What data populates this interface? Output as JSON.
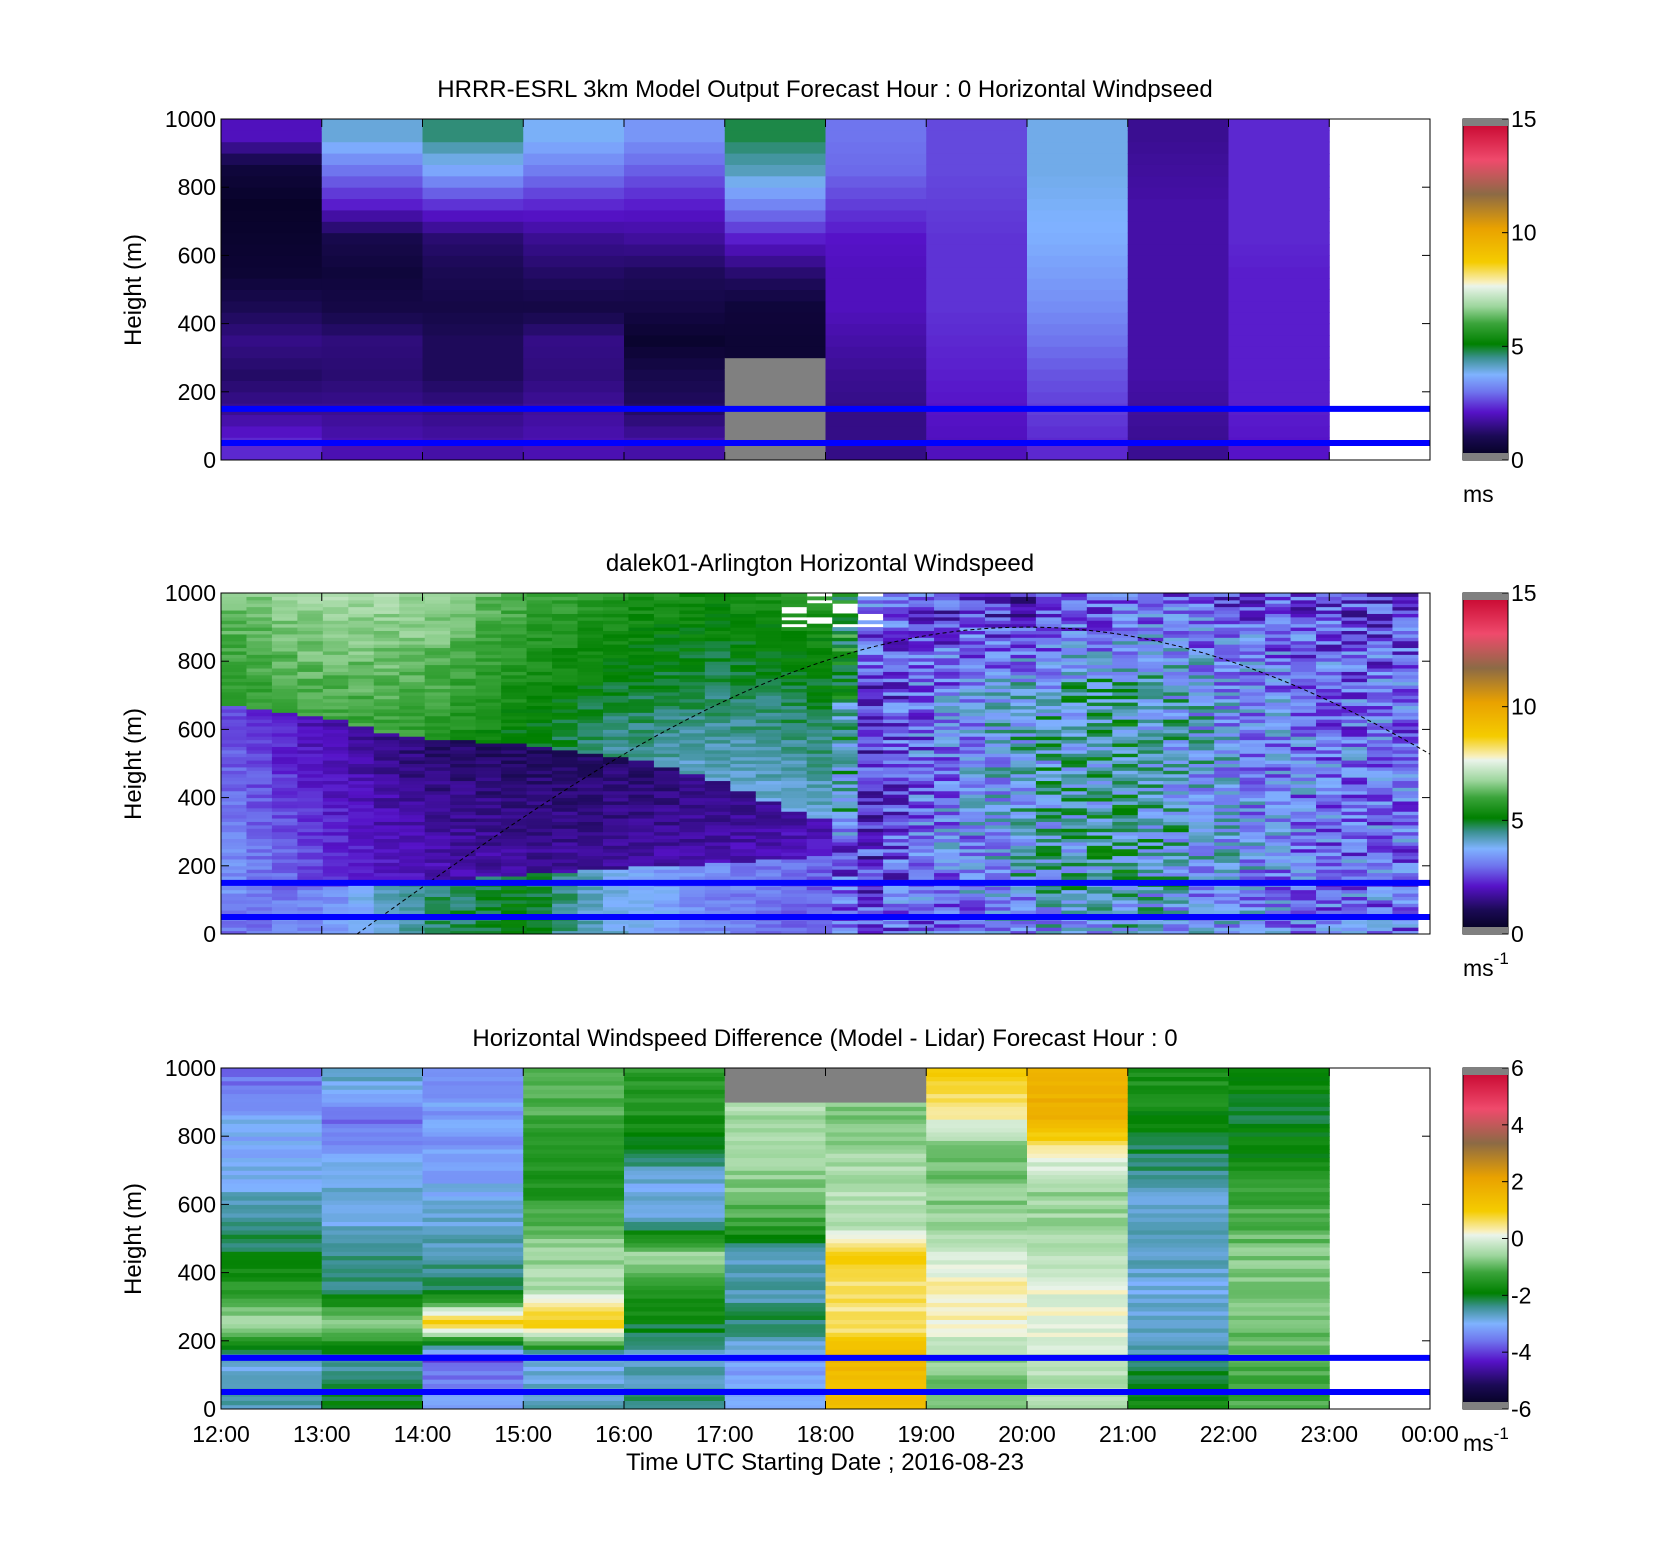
{
  "figure": {
    "xlabel": "Time UTC  Starting Date ; 2016-08-23",
    "time_ticks": [
      "12:00",
      "13:00",
      "14:00",
      "15:00",
      "16:00",
      "17:00",
      "18:00",
      "19:00",
      "20:00",
      "21:00",
      "22:00",
      "23:00",
      "00:00"
    ],
    "reference_lines_m": [
      150,
      50
    ],
    "reference_line_color": "#0000ff"
  },
  "chart_data": [
    {
      "type": "heatmap",
      "title": "HRRR-ESRL 3km Model Output   Forecast Hour : 0 Horizontal Windpseed",
      "ylabel": "Height (m)",
      "ylim": [
        0,
        1000
      ],
      "y_ticks": [
        "0",
        "200",
        "400",
        "600",
        "800",
        "1000"
      ],
      "x_range_hours": [
        12,
        24
      ],
      "colorbar": {
        "range": [
          0,
          15
        ],
        "ticks": [
          "0",
          "5",
          "10",
          "15"
        ],
        "unit": "ms",
        "unit_sup": ""
      },
      "columns": [
        {
          "hour": 12,
          "speeds": [
            2.3,
            1.6,
            1.2,
            1.5,
            1.0,
            0.5,
            0.4,
            0.3,
            0.6,
            2.0
          ]
        },
        {
          "hour": 13,
          "speeds": [
            1.9,
            1.6,
            1.3,
            1.4,
            0.8,
            0.6,
            0.9,
            2.2,
            3.0,
            4.0
          ]
        },
        {
          "hour": 14,
          "speeds": [
            1.8,
            1.5,
            1.1,
            1.1,
            0.8,
            1.0,
            1.3,
            2.4,
            3.6,
            4.6
          ]
        },
        {
          "hour": 15,
          "speeds": [
            1.9,
            1.7,
            1.4,
            1.5,
            0.8,
            1.2,
            1.6,
            2.3,
            3.1,
            3.8
          ]
        },
        {
          "hour": 16,
          "speeds": [
            1.8,
            1.2,
            0.9,
            0.4,
            0.8,
            1.1,
            1.7,
            2.2,
            2.8,
            3.4
          ]
        },
        {
          "hour": 17,
          "speeds": [
            null,
            null,
            null,
            0.5,
            0.6,
            1.3,
            2.2,
            3.2,
            4.2,
            4.8
          ]
        },
        {
          "hour": 18,
          "speeds": [
            1.5,
            1.5,
            1.6,
            1.8,
            2.0,
            2.0,
            2.1,
            2.5,
            2.9,
            3.0
          ]
        },
        {
          "hour": 19,
          "speeds": [
            2.0,
            2.1,
            2.2,
            2.3,
            2.4,
            2.4,
            2.4,
            2.5,
            2.6,
            2.6
          ]
        },
        {
          "hour": 20,
          "speeds": [
            2.3,
            2.5,
            2.7,
            3.0,
            3.3,
            3.5,
            3.7,
            3.8,
            3.9,
            3.9
          ]
        },
        {
          "hour": 21,
          "speeds": [
            1.6,
            1.7,
            1.8,
            1.8,
            1.8,
            1.8,
            1.8,
            1.8,
            1.7,
            1.6
          ]
        },
        {
          "hour": 22,
          "speeds": [
            2.1,
            2.2,
            2.2,
            2.2,
            2.2,
            2.2,
            2.3,
            2.3,
            2.3,
            2.3
          ]
        }
      ]
    },
    {
      "type": "heatmap",
      "title": "dalek01-Arlington  Horizontal Windspeed",
      "ylabel": "Height (m)",
      "ylim": [
        0,
        1000
      ],
      "y_ticks": [
        "0",
        "200",
        "400",
        "600",
        "800",
        "1000"
      ],
      "x_range_hours": [
        12,
        24
      ],
      "colorbar": {
        "range": [
          0,
          15
        ],
        "ticks": [
          "0",
          "5",
          "10",
          "15"
        ],
        "unit": "ms",
        "unit_sup": "-1"
      },
      "profile_keys": {
        "hours": [
          12.0,
          13.0,
          14.0,
          15.0,
          16.0,
          17.0,
          18.0,
          19.0,
          20.0,
          21.0,
          22.0,
          23.0
        ],
        "low_jet_top_m": [
          680,
          640,
          570,
          560,
          520,
          440,
          330,
          0,
          0,
          0,
          0,
          0
        ],
        "upper_speed": [
          5.6,
          6.0,
          5.8,
          5.0,
          4.4,
          4.0,
          4.0,
          2.4,
          2.0,
          2.6,
          2.6,
          2.4
        ],
        "mid_speed": [
          2.6,
          1.8,
          1.3,
          1.1,
          1.2,
          1.5,
          1.9,
          3.0,
          4.0,
          4.4,
          3.6,
          3.0
        ],
        "surface_speed": [
          3.0,
          3.2,
          4.6,
          5.0,
          3.8,
          3.2,
          2.8,
          3.0,
          3.6,
          4.0,
          3.4,
          3.0
        ]
      },
      "boundary_layer_curve": {
        "start_hour": 13.35,
        "peak_hour": 20.0,
        "peak_m": 900,
        "end_hour": 24.0,
        "end_m": 535
      }
    },
    {
      "type": "heatmap",
      "title": "Horizontal Windspeed Difference (Model - Lidar) Forecast Hour : 0",
      "ylabel": "Height (m)",
      "ylim": [
        0,
        1000
      ],
      "y_ticks": [
        "0",
        "200",
        "400",
        "600",
        "800",
        "1000"
      ],
      "x_range_hours": [
        12,
        24
      ],
      "colorbar": {
        "range": [
          -6,
          6
        ],
        "ticks": [
          "-6",
          "-4",
          "-2",
          "0",
          "2",
          "4",
          "6"
        ],
        "unit": "ms",
        "unit_sup": "-1"
      },
      "columns": [
        {
          "hour": 12,
          "speeds": [
            -2.6,
            -2.8,
            -0.4,
            -1.4,
            -2.0,
            -2.4,
            -2.8,
            -3.0,
            -3.0,
            -3.6
          ]
        },
        {
          "hour": 13,
          "speeds": [
            -2.0,
            -2.6,
            -0.5,
            -2.2,
            -2.4,
            -2.8,
            -2.8,
            -3.1,
            -3.8,
            -2.8
          ]
        },
        {
          "hour": 14,
          "speeds": [
            -3.2,
            -4.0,
            1.0,
            -2.2,
            -2.6,
            -2.8,
            -3.0,
            -3.2,
            -3.2,
            -3.2
          ]
        },
        {
          "hour": 15,
          "speeds": [
            -2.6,
            -3.0,
            1.2,
            -0.4,
            -0.6,
            -1.0,
            -1.6,
            -1.6,
            -1.2,
            -0.9
          ]
        },
        {
          "hour": 16,
          "speeds": [
            -2.4,
            -2.8,
            -2.0,
            -1.4,
            -0.5,
            -2.6,
            -3.0,
            -2.2,
            -1.6,
            -1.4
          ]
        },
        {
          "hour": 17,
          "speeds": [
            -3.0,
            -3.2,
            -2.2,
            -2.6,
            -2.6,
            -1.2,
            -0.8,
            -0.6,
            -0.5,
            null
          ]
        },
        {
          "hour": 18,
          "speeds": [
            1.4,
            1.6,
            0.4,
            0.6,
            0.8,
            -0.5,
            -0.4,
            -0.6,
            -0.8,
            null
          ]
        },
        {
          "hour": 19,
          "speeds": [
            -1.0,
            -0.6,
            0.2,
            0.4,
            -0.2,
            -0.6,
            -0.8,
            -1.0,
            0.2,
            0.8
          ]
        },
        {
          "hour": 20,
          "speeds": [
            -0.5,
            -0.2,
            0.1,
            0.0,
            -0.4,
            -0.6,
            -0.6,
            0.2,
            1.6,
            1.8
          ]
        },
        {
          "hour": 21,
          "speeds": [
            -1.8,
            -2.4,
            -2.8,
            -2.8,
            -2.6,
            -2.8,
            -2.6,
            -2.2,
            -1.8,
            -1.6
          ]
        },
        {
          "hour": 22,
          "speeds": [
            -1.2,
            -1.0,
            -0.8,
            -0.7,
            -0.8,
            -1.0,
            -1.4,
            -1.8,
            -2.0,
            -1.8
          ]
        }
      ]
    }
  ]
}
